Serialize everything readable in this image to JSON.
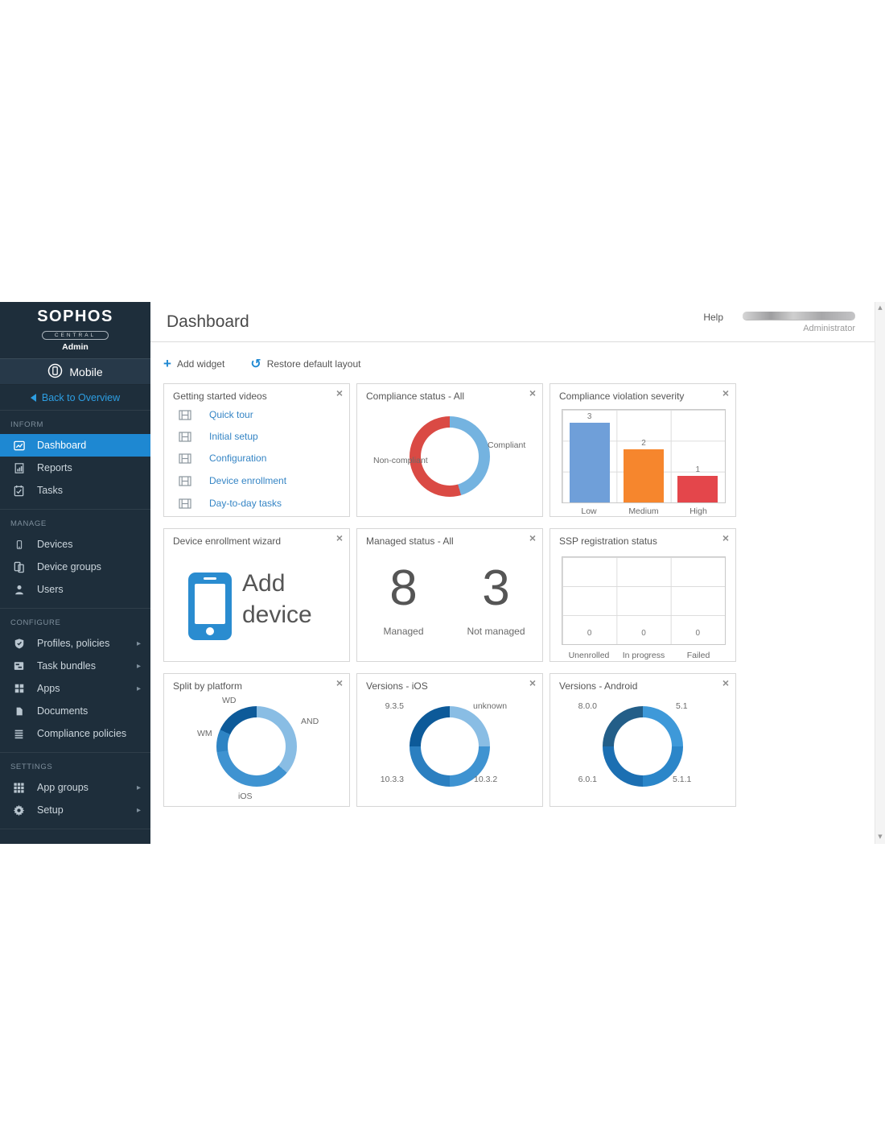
{
  "app": {
    "page_title": "Dashboard",
    "help_label": "Help",
    "user_role": "Administrator"
  },
  "sidebar": {
    "logo": {
      "brand": "SOPHOS",
      "product": "CENTRAL",
      "edition": "Admin"
    },
    "module": "Mobile",
    "back_link": "Back to Overview",
    "sections": [
      {
        "label": "INFORM",
        "items": [
          {
            "label": "Dashboard",
            "icon": "dashboard-icon",
            "active": true
          },
          {
            "label": "Reports",
            "icon": "reports-icon"
          },
          {
            "label": "Tasks",
            "icon": "tasks-icon"
          }
        ]
      },
      {
        "label": "MANAGE",
        "items": [
          {
            "label": "Devices",
            "icon": "devices-icon"
          },
          {
            "label": "Device groups",
            "icon": "device-groups-icon"
          },
          {
            "label": "Users",
            "icon": "users-icon"
          }
        ]
      },
      {
        "label": "CONFIGURE",
        "items": [
          {
            "label": "Profiles, policies",
            "icon": "profiles-policies-icon",
            "chevron": true
          },
          {
            "label": "Task bundles",
            "icon": "task-bundles-icon",
            "chevron": true
          },
          {
            "label": "Apps",
            "icon": "apps-icon",
            "chevron": true
          },
          {
            "label": "Documents",
            "icon": "documents-icon"
          },
          {
            "label": "Compliance policies",
            "icon": "compliance-policies-icon"
          }
        ]
      },
      {
        "label": "SETTINGS",
        "items": [
          {
            "label": "App groups",
            "icon": "app-groups-icon",
            "chevron": true
          },
          {
            "label": "Setup",
            "icon": "setup-icon",
            "chevron": true
          }
        ]
      }
    ]
  },
  "toolbar": {
    "add_widget_label": "Add widget",
    "restore_layout_label": "Restore default layout"
  },
  "ui": {
    "close_glyph": "×",
    "plus_glyph": "+",
    "restore_glyph": "↺",
    "chevron_glyph": "▸",
    "scroll_up_glyph": "▲",
    "scroll_down_glyph": "▼"
  },
  "widgets": {
    "videos": {
      "title": "Getting started videos",
      "links": [
        "Quick tour",
        "Initial setup",
        "Configuration",
        "Device enrollment",
        "Day-to-day tasks"
      ]
    },
    "wizard": {
      "title": "Device enrollment wizard",
      "action_label": "Add device"
    },
    "managed": {
      "title": "Managed status - All",
      "items": [
        {
          "value": "8",
          "label": "Managed"
        },
        {
          "value": "3",
          "label": "Not managed"
        }
      ]
    }
  },
  "chart_data": [
    {
      "id": "compliance_status",
      "type": "pie",
      "donut": true,
      "title": "Compliance status - All",
      "labels": [
        "Compliant",
        "Non-compliant"
      ],
      "values": [
        5,
        6
      ],
      "colors": [
        "#74b3e0",
        "#da4a44"
      ],
      "legend_position": "inline-labels"
    },
    {
      "id": "violation_severity",
      "type": "bar",
      "title": "Compliance violation severity",
      "categories": [
        "Low",
        "Medium",
        "High"
      ],
      "values": [
        3,
        2,
        1
      ],
      "colors": [
        "#6f9fd9",
        "#f6862d",
        "#e4464b"
      ],
      "ylim": [
        0,
        3.5
      ],
      "grid": true
    },
    {
      "id": "ssp_registration",
      "type": "bar",
      "title": "SSP registration status",
      "categories": [
        "Unenrolled",
        "In progress",
        "Failed"
      ],
      "values": [
        0,
        0,
        0
      ],
      "colors": [
        "#6f9fd9",
        "#6f9fd9",
        "#6f9fd9"
      ],
      "ylim": [
        0,
        3
      ],
      "grid": true
    },
    {
      "id": "split_platform",
      "type": "pie",
      "donut": true,
      "title": "Split by platform",
      "labels": [
        "AND",
        "iOS",
        "WM",
        "WD"
      ],
      "values": [
        4,
        4,
        1,
        2
      ],
      "colors": [
        "#89bde4",
        "#3f93d1",
        "#2e84c4",
        "#0d5a99"
      ],
      "legend_position": "inline-labels"
    },
    {
      "id": "versions_ios",
      "type": "pie",
      "donut": true,
      "title": "Versions - iOS",
      "labels": [
        "unknown",
        "10.3.2",
        "10.3.3",
        "9.3.5"
      ],
      "values": [
        1,
        1,
        1,
        1
      ],
      "colors": [
        "#89bde4",
        "#3f93d1",
        "#2b7fc0",
        "#0d5a99"
      ],
      "legend_position": "inline-labels"
    },
    {
      "id": "versions_android",
      "type": "pie",
      "donut": true,
      "title": "Versions - Android",
      "labels": [
        "5.1",
        "5.1.1",
        "6.0.1",
        "8.0.0"
      ],
      "values": [
        1,
        1,
        1,
        1
      ],
      "colors": [
        "#3e99d9",
        "#2b86c9",
        "#1c6fb2",
        "#235e88"
      ],
      "legend_position": "inline-labels"
    }
  ]
}
